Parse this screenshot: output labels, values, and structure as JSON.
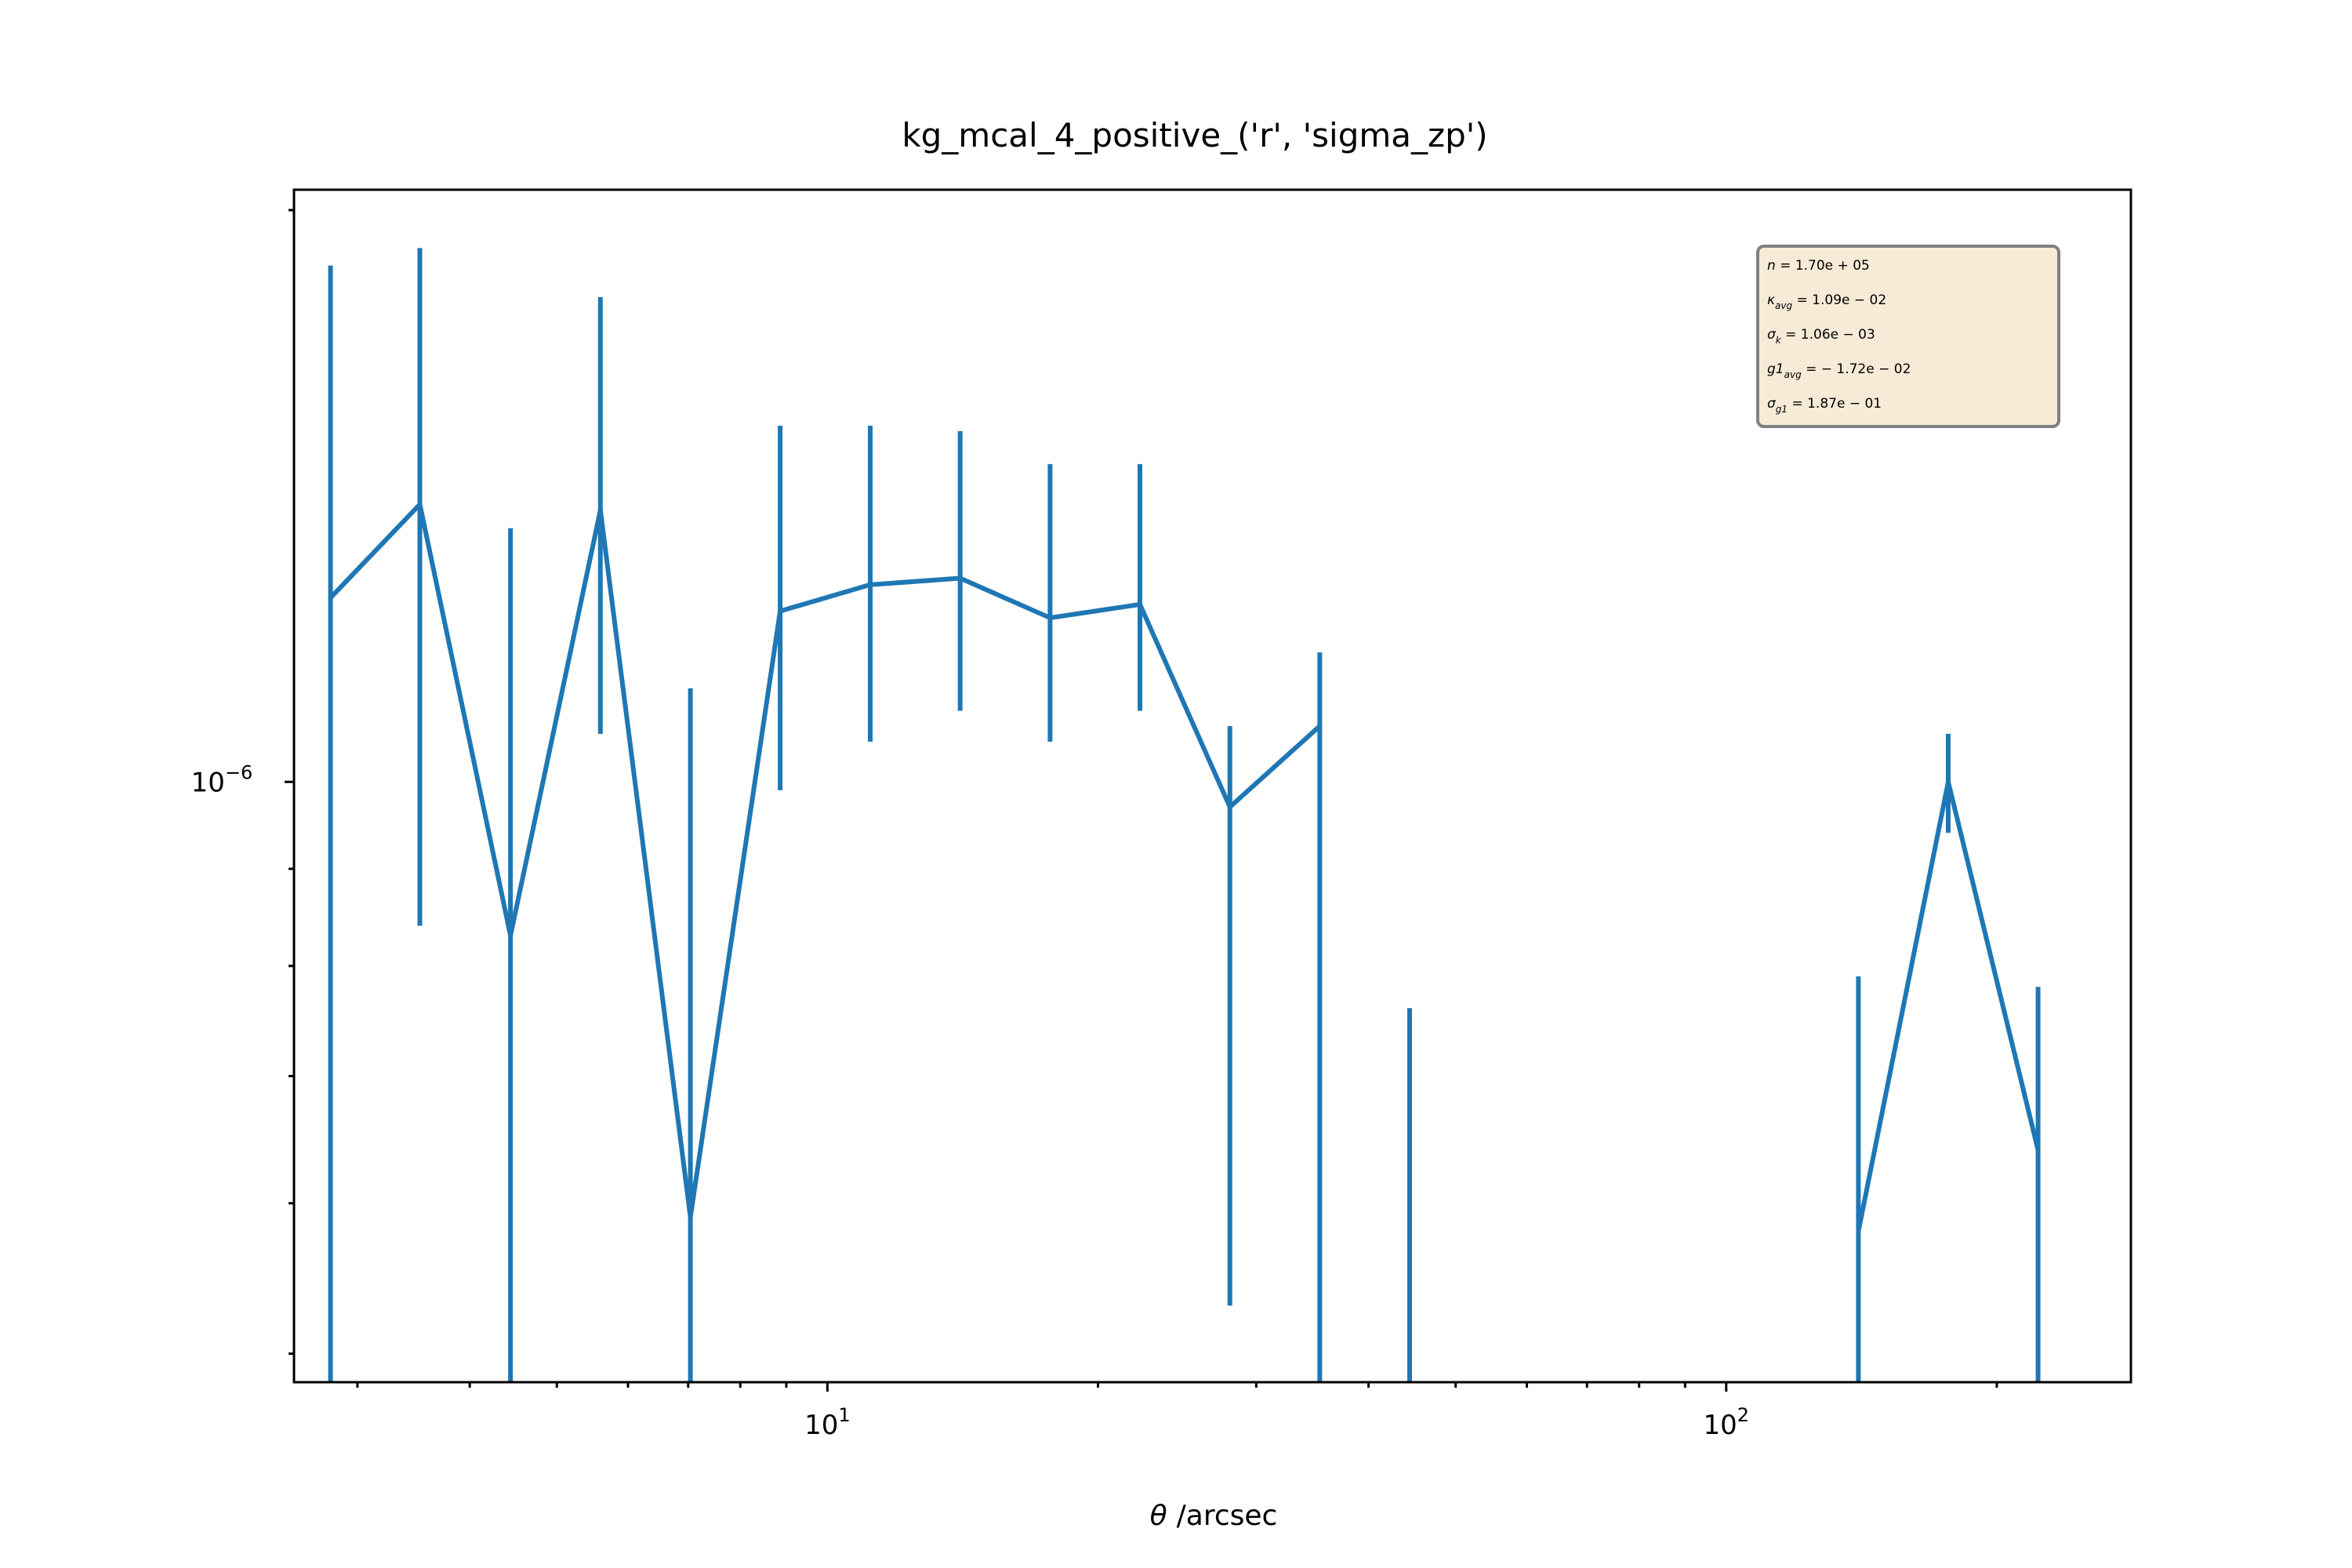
{
  "chart_data": {
    "type": "line",
    "title": "kg_mcal_4_positive_('r', 'sigma_zp')",
    "xlabel": "/arcsec",
    "xlabel_symbol": "θ",
    "ylabel": "",
    "xscale": "log",
    "yscale": "log",
    "xlim": [
      2.55,
      282
    ],
    "ylim": [
      4.83e-07,
      2.05e-06
    ],
    "x_major_ticks": [
      {
        "value": 10,
        "base": "10",
        "exp": "1"
      },
      {
        "value": 100,
        "base": "10",
        "exp": "2"
      }
    ],
    "y_major_ticks": [
      {
        "value": 1e-06,
        "base": "10",
        "exp": "−6"
      }
    ],
    "color": "#1f77b4",
    "series": [
      {
        "x": [
          2.8,
          3.52,
          4.44,
          5.59,
          7.04,
          8.86,
          11.16,
          14.05,
          17.69,
          22.27,
          28.04,
          35.3,
          44.44,
          140.3,
          176.6,
          222.3
        ],
        "y": [
          1.25e-06,
          1.4e-06,
          8.3e-07,
          1.39e-06,
          5.9e-07,
          1.23e-06,
          1.27e-06,
          1.28e-06,
          1.22e-06,
          1.24e-06,
          9.7e-07,
          1.07e-06,
          null,
          5.8e-07,
          1e-06,
          6.4e-07
        ],
        "y_err_low": [
          4.83e-07,
          8.4e-07,
          4.83e-07,
          1.06e-06,
          4.83e-07,
          9.9e-07,
          1.05e-06,
          1.09e-06,
          1.05e-06,
          1.09e-06,
          5.3e-07,
          4.83e-07,
          4.83e-07,
          4.83e-07,
          9.4e-07,
          4.83e-07
        ],
        "y_err_high": [
          1.87e-06,
          1.91e-06,
          1.36e-06,
          1.8e-06,
          1.12e-06,
          1.54e-06,
          1.54e-06,
          1.53e-06,
          1.47e-06,
          1.47e-06,
          1.07e-06,
          1.17e-06,
          7.6e-07,
          7.9e-07,
          1.06e-06,
          7.8e-07
        ]
      }
    ],
    "stats_box": {
      "lines": [
        {
          "var": "n",
          "sub": "",
          "rest": " = 1.70e + 05"
        },
        {
          "var": "κ",
          "sub": "avg",
          "rest": " = 1.09e − 02"
        },
        {
          "var": "σ",
          "sub": "k",
          "rest": " = 1.06e − 03"
        },
        {
          "var": "g1",
          "sub": "avg",
          "rest": " = − 1.72e − 02"
        },
        {
          "var": "σ",
          "sub": "g1",
          "rest": " = 1.87e − 01"
        }
      ]
    },
    "grid": false,
    "legend": "none"
  }
}
